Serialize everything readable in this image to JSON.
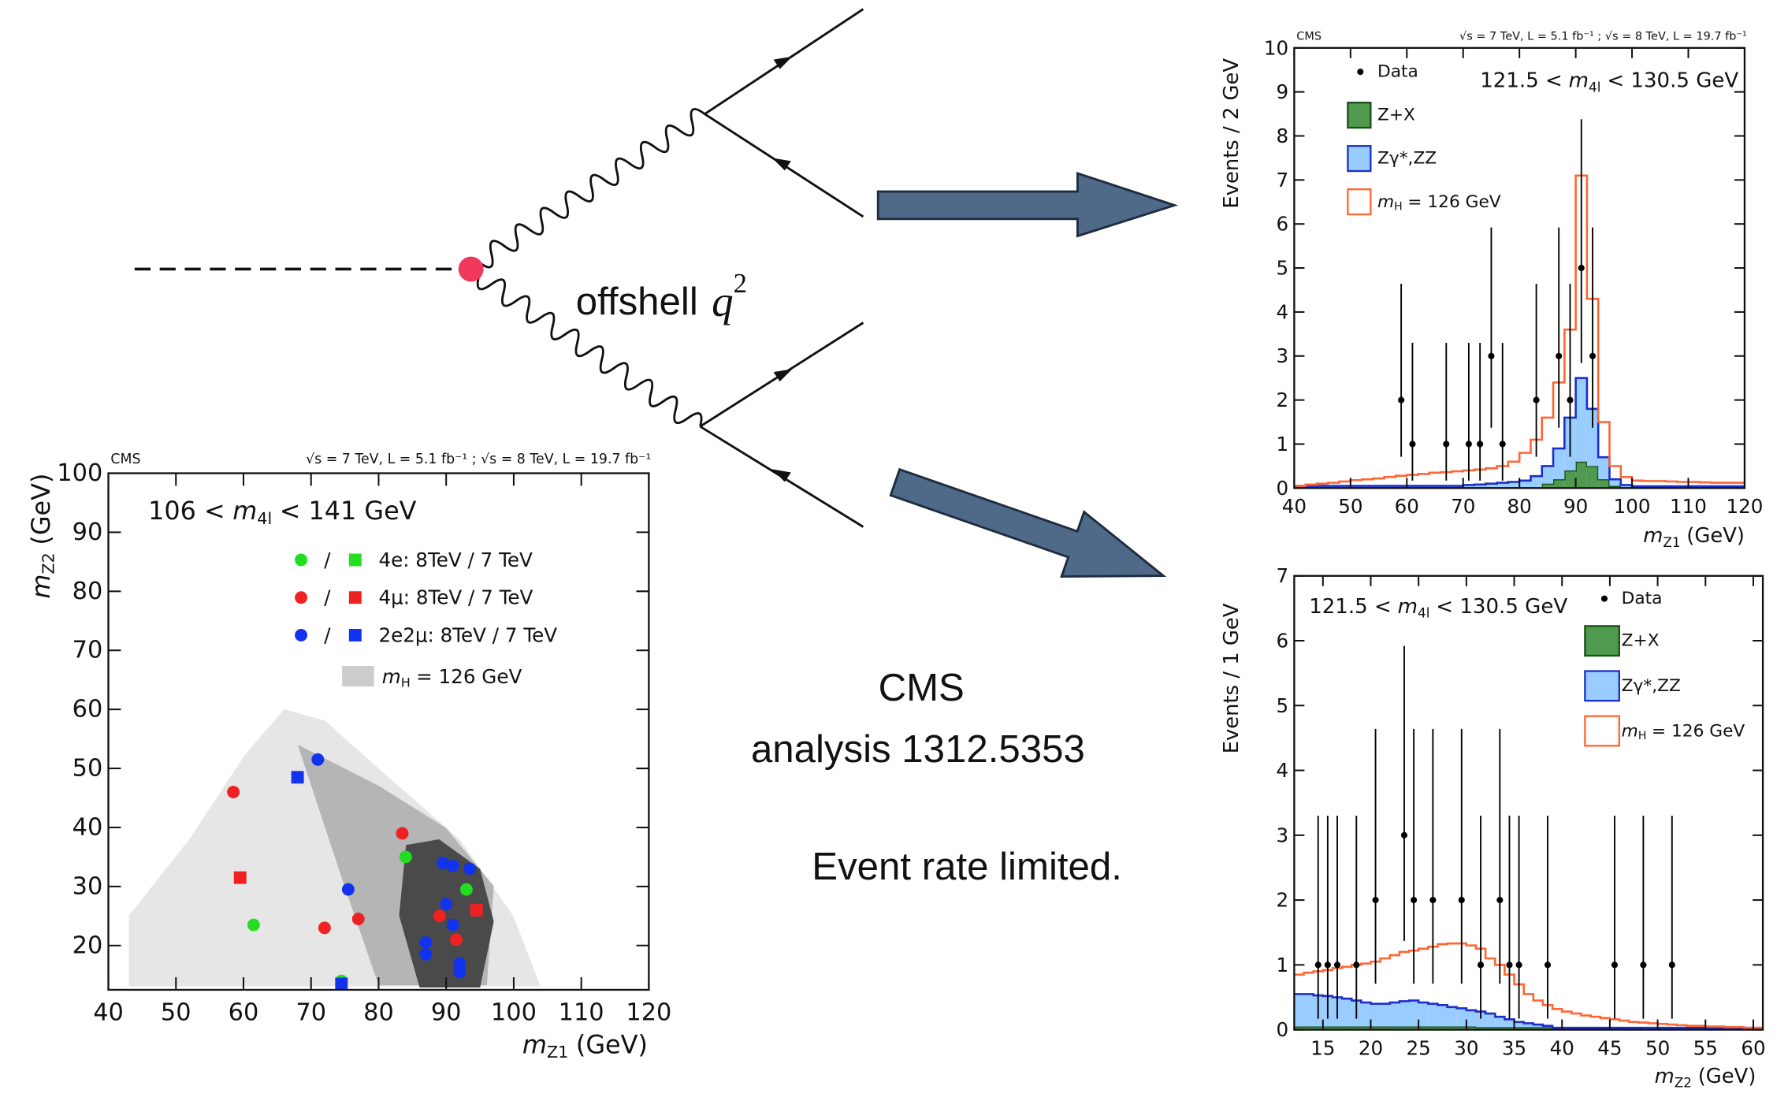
{
  "slide": {
    "diagram_label": {
      "text": "offshell",
      "math": "q",
      "sup": "2"
    },
    "notes": [
      "CMS",
      "analysis 1312.5353",
      "Event rate limited."
    ]
  },
  "chart_data": [
    {
      "type": "scatter",
      "header_left": "CMS",
      "header_right": "√s = 7 TeV, L = 5.1 fb⁻¹ ; √s = 8 TeV, L = 19.7 fb⁻¹",
      "annotation": {
        "pre": "106 <",
        "symbol": "m",
        "sub": "4l",
        "post": "< 141 GeV"
      },
      "x_label": {
        "symbol": "m",
        "sub": "Z1",
        "post": "(GeV)"
      },
      "y_label": {
        "symbol": "m",
        "sub": "Z2",
        "post": "(GeV)"
      },
      "legend_separator": "/",
      "background": {
        "name": {
          "symbol": "m",
          "sub": "H",
          "post": "= 126 GeV"
        },
        "color": "#cccccc"
      },
      "series": [
        {
          "name": "4e: 8TeV / 7 TeV",
          "color": "#22dd22",
          "x": [
            61.5,
            84,
            93,
            74.5
          ],
          "values": [
            23.5,
            35,
            29.5,
            14
          ],
          "marker": [
            "circle",
            "circle",
            "circle",
            "circle"
          ]
        },
        {
          "name": "4μ: 8TeV / 7 TeV",
          "color": "#ee2222",
          "x": [
            58.5,
            83.5,
            72,
            77,
            89,
            91.5,
            94.5,
            59.5
          ],
          "values": [
            46,
            39,
            23,
            24.5,
            25,
            21,
            26,
            31.5
          ],
          "marker": [
            "circle",
            "circle",
            "circle",
            "circle",
            "circle",
            "circle",
            "square",
            "square"
          ]
        },
        {
          "name": "2e2μ: 8TeV / 7 TeV",
          "color": "#1133ee",
          "x": [
            71,
            75.5,
            89.5,
            91,
            93.5,
            90,
            91,
            87,
            87,
            92,
            92,
            68,
            74.5
          ],
          "values": [
            51.5,
            29.5,
            34,
            33.5,
            33,
            27,
            23.5,
            20.5,
            18.5,
            17,
            15.5,
            48.5,
            13.5
          ],
          "marker": [
            "circle",
            "circle",
            "circle",
            "circle",
            "circle",
            "circle",
            "circle",
            "circle",
            "circle",
            "circle",
            "circle",
            "square",
            "square"
          ]
        }
      ],
      "xlim": [
        40,
        120
      ],
      "xticks": [
        40,
        50,
        60,
        70,
        80,
        90,
        100,
        110,
        120
      ],
      "ylim": [
        12.5,
        100
      ],
      "yticks": [
        20,
        30,
        40,
        50,
        60,
        70,
        80,
        90,
        100
      ]
    },
    {
      "type": "histogram",
      "header_left": "CMS",
      "header_right": "√s = 7 TeV, L = 5.1 fb⁻¹ ; √s = 8 TeV, L = 19.7 fb⁻¹",
      "annotation": {
        "pre": "121.5 <",
        "symbol": "m",
        "sub": "4l",
        "post": "< 130.5 GeV"
      },
      "x_label": {
        "symbol": "m",
        "sub": "Z1",
        "post": "(GeV)"
      },
      "y_label": "Events / 2 GeV",
      "bins": [
        40,
        42,
        44,
        46,
        48,
        50,
        52,
        54,
        56,
        58,
        60,
        62,
        64,
        66,
        68,
        70,
        72,
        74,
        76,
        78,
        80,
        82,
        84,
        86,
        88,
        90,
        92,
        94,
        96,
        98,
        100,
        102,
        104,
        106,
        108,
        110,
        112,
        114,
        116,
        118,
        120
      ],
      "series": [
        {
          "name": "Z+X",
          "fill": "#4f9a4f",
          "color": "#1b4d1b",
          "values": [
            0.02,
            0.02,
            0.02,
            0.02,
            0.02,
            0.02,
            0.02,
            0.02,
            0.02,
            0.02,
            0.02,
            0.02,
            0.02,
            0.02,
            0.02,
            0.02,
            0.02,
            0.02,
            0.02,
            0.02,
            0.02,
            0.02,
            0.1,
            0.2,
            0.4,
            0.6,
            0.5,
            0.2,
            0.05,
            0.02,
            0.02,
            0.02,
            0.02,
            0.02,
            0.02,
            0.02,
            0.02,
            0.02,
            0.02,
            0.02
          ]
        },
        {
          "name": "Zγ*,ZZ",
          "fill": "#99ccff",
          "color": "#1a2fcc",
          "values": [
            0.03,
            0.03,
            0.03,
            0.03,
            0.03,
            0.03,
            0.03,
            0.03,
            0.03,
            0.03,
            0.03,
            0.03,
            0.03,
            0.03,
            0.03,
            0.05,
            0.06,
            0.08,
            0.1,
            0.12,
            0.15,
            0.25,
            0.4,
            0.7,
            1.2,
            1.9,
            1.3,
            0.5,
            0.15,
            0.05,
            0.02,
            0.02,
            0.02,
            0.02,
            0.02,
            0.02,
            0.02,
            0.02,
            0.02,
            0.02
          ]
        },
        {
          "name": {
            "symbol": "m",
            "sub": "H",
            "post": "= 126 GeV"
          },
          "fill": "none",
          "color": "#ff6633",
          "values": [
            0,
            0.03,
            0.05,
            0.07,
            0.1,
            0.13,
            0.15,
            0.17,
            0.2,
            0.23,
            0.25,
            0.27,
            0.3,
            0.31,
            0.33,
            0.33,
            0.34,
            0.35,
            0.38,
            0.46,
            0.63,
            0.83,
            1.1,
            1.5,
            2.0,
            4.6,
            2.5,
            0.8,
            0.3,
            0.18,
            0.13,
            0.12,
            0.12,
            0.11,
            0.1,
            0.1,
            0.09,
            0.08,
            0.08,
            0.08
          ]
        }
      ],
      "data": {
        "name": "Data",
        "color": "#000000",
        "x": [
          59,
          61,
          67,
          71,
          73,
          75,
          77,
          83,
          87,
          89,
          91,
          93
        ],
        "values": [
          2,
          1,
          1,
          1,
          1,
          3,
          1,
          2,
          3,
          2,
          5,
          3
        ],
        "err_low": [
          1.29,
          0.83,
          0.83,
          0.83,
          0.83,
          1.63,
          0.83,
          1.29,
          1.63,
          1.29,
          2.16,
          1.63
        ],
        "err_high": [
          2.64,
          2.3,
          2.3,
          2.3,
          2.3,
          2.92,
          2.3,
          2.64,
          2.92,
          2.64,
          3.38,
          2.92
        ]
      },
      "xlim": [
        40,
        120
      ],
      "xticks": [
        40,
        50,
        60,
        70,
        80,
        90,
        100,
        110,
        120
      ],
      "ylim": [
        0,
        10
      ],
      "yticks": [
        0,
        1,
        2,
        3,
        4,
        5,
        6,
        7,
        8,
        9,
        10
      ]
    },
    {
      "type": "histogram",
      "annotation": {
        "pre": "121.5 <",
        "symbol": "m",
        "sub": "4l",
        "post": "< 130.5 GeV"
      },
      "x_label": {
        "symbol": "m",
        "sub": "Z2",
        "post": "(GeV)"
      },
      "y_label": "Events / 1 GeV",
      "bins": [
        12,
        13,
        14,
        15,
        16,
        17,
        18,
        19,
        20,
        21,
        22,
        23,
        24,
        25,
        26,
        27,
        28,
        29,
        30,
        31,
        32,
        33,
        34,
        35,
        36,
        37,
        38,
        39,
        40,
        41,
        42,
        43,
        44,
        45,
        46,
        47,
        48,
        49,
        50,
        51,
        52,
        53,
        54,
        55,
        56,
        57,
        58,
        59,
        60,
        61
      ],
      "series": [
        {
          "name": "Z+X",
          "fill": "#4f9a4f",
          "color": "#1b4d1b",
          "values": [
            0.05,
            0.05,
            0.05,
            0.05,
            0.05,
            0.05,
            0.05,
            0.05,
            0.05,
            0.05,
            0.05,
            0.05,
            0.05,
            0.05,
            0.05,
            0.05,
            0.05,
            0.05,
            0.05,
            0.04,
            0.04,
            0.04,
            0.04,
            0.04,
            0.04,
            0.04,
            0.04,
            0.02,
            0.02,
            0.02,
            0.02,
            0.02,
            0.02,
            0.02,
            0.02,
            0.02,
            0.02,
            0.02,
            0.02,
            0.02,
            0.02,
            0.02,
            0.02,
            0.02,
            0.02,
            0.02,
            0.02,
            0.02,
            0.02
          ]
        },
        {
          "name": "Zγ*,ZZ",
          "fill": "#99ccff",
          "color": "#1a2fcc",
          "values": [
            0.5,
            0.5,
            0.48,
            0.47,
            0.45,
            0.43,
            0.4,
            0.37,
            0.35,
            0.35,
            0.37,
            0.39,
            0.4,
            0.37,
            0.35,
            0.33,
            0.3,
            0.28,
            0.25,
            0.24,
            0.21,
            0.16,
            0.12,
            0.08,
            0.06,
            0.04,
            0.02,
            0.01,
            0.01,
            0.01,
            0.01,
            0.01,
            0.01,
            0.01,
            0.01,
            0.01,
            0.01,
            0.01,
            0.01,
            0.01,
            0.01,
            0.01,
            0.01,
            0.01,
            0.01,
            0.01,
            0.01,
            0.01,
            0.01
          ]
        },
        {
          "name": {
            "symbol": "m",
            "sub": "H",
            "post": "= 126 GeV"
          },
          "fill": "none",
          "color": "#ff6633",
          "values": [
            0.3,
            0.33,
            0.37,
            0.4,
            0.45,
            0.49,
            0.55,
            0.6,
            0.65,
            0.7,
            0.73,
            0.76,
            0.77,
            0.83,
            0.88,
            0.94,
            0.98,
            1.0,
            1.0,
            0.97,
            0.85,
            0.8,
            0.69,
            0.58,
            0.45,
            0.37,
            0.32,
            0.29,
            0.25,
            0.22,
            0.19,
            0.17,
            0.15,
            0.13,
            0.11,
            0.09,
            0.08,
            0.07,
            0.06,
            0.05,
            0.04,
            0.03,
            0.03,
            0.02,
            0.02,
            0.01,
            0.01,
            0,
            0
          ]
        }
      ],
      "data": {
        "name": "Data",
        "color": "#000000",
        "x": [
          14.5,
          15.5,
          16.5,
          18.5,
          20.5,
          23.5,
          24.5,
          26.5,
          29.5,
          31.5,
          33.5,
          34.5,
          35.5,
          38.5,
          45.5,
          48.5,
          51.5
        ],
        "values": [
          1,
          1,
          1,
          1,
          2,
          3,
          2,
          2,
          2,
          1,
          2,
          1,
          1,
          1,
          1,
          1,
          1
        ],
        "err_low": [
          0.83,
          0.83,
          0.83,
          0.83,
          1.29,
          1.63,
          1.29,
          1.29,
          1.29,
          0.83,
          1.29,
          0.83,
          0.83,
          0.83,
          0.83,
          0.83,
          0.83
        ],
        "err_high": [
          2.3,
          2.3,
          2.3,
          2.3,
          2.64,
          2.92,
          2.64,
          2.64,
          2.64,
          2.3,
          2.64,
          2.3,
          2.3,
          2.3,
          2.3,
          2.3,
          2.3
        ]
      },
      "xlim": [
        12,
        61
      ],
      "xticks": [
        15,
        20,
        25,
        30,
        35,
        40,
        45,
        50,
        55,
        60
      ],
      "ylim": [
        0,
        7
      ],
      "yticks": [
        0,
        1,
        2,
        3,
        4,
        5,
        6,
        7
      ]
    }
  ]
}
